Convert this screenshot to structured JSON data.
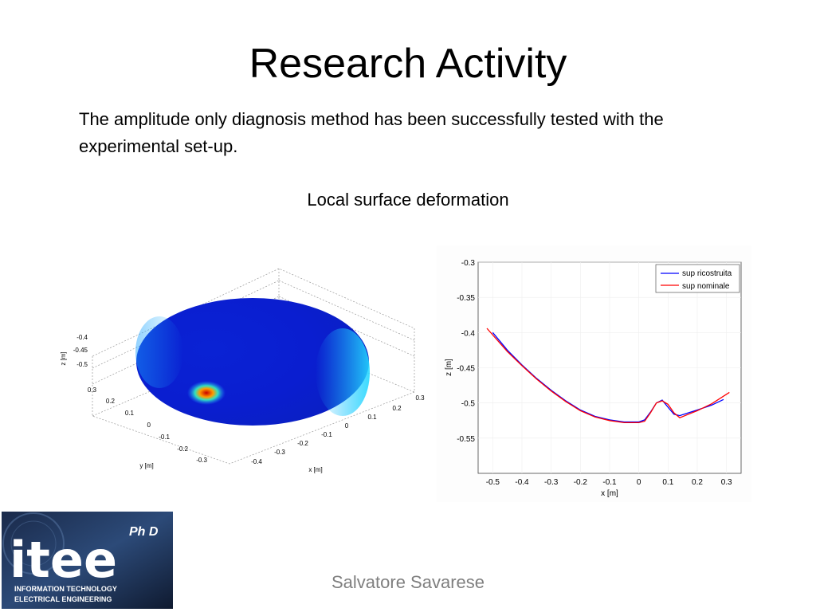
{
  "slide": {
    "title": "Research Activity",
    "body": "The amplitude only diagnosis method has been successfully tested with the experimental set-up.",
    "caption": "Local surface deformation",
    "footer": "Salvatore Savarese"
  },
  "logo": {
    "main": "itee",
    "badge": "Ph D",
    "line1": "INFORMATION TECHNOLOGY",
    "line2": "ELECTRICAL ENGINEERING"
  },
  "chart_data": [
    {
      "type": "surface",
      "title": "",
      "xlabel": "x [m]",
      "ylabel": "y [m]",
      "zlabel": "z [m]",
      "x_ticks": [
        "0.3",
        "0.2",
        "0.1",
        "0",
        "-0.1",
        "-0.2",
        "-0.3",
        "-0.4"
      ],
      "y_ticks": [
        "0.3",
        "0.2",
        "0.1",
        "0",
        "-0.1",
        "-0.2",
        "-0.3"
      ],
      "z_ticks": [
        "-0.4",
        "-0.45",
        "-0.5"
      ],
      "xlim": [
        -0.4,
        0.3
      ],
      "ylim": [
        -0.3,
        0.3
      ],
      "zlim": [
        -0.5,
        -0.4
      ],
      "colors": {
        "low": "#0a1ec8",
        "mid": "#1bb8ff",
        "high": "#c80000"
      }
    },
    {
      "type": "line",
      "title": "",
      "xlabel": "x [m]",
      "ylabel": "z [m]",
      "xlim": [
        -0.55,
        0.35
      ],
      "ylim": [
        -0.6,
        -0.3
      ],
      "x_ticks": [
        -0.5,
        -0.4,
        -0.3,
        -0.2,
        -0.1,
        0,
        0.1,
        0.2,
        0.3
      ],
      "y_ticks": [
        -0.3,
        -0.35,
        -0.4,
        -0.45,
        -0.5,
        -0.55
      ],
      "legend_position": "top-right",
      "series": [
        {
          "name": "sup ricostruita",
          "color": "#0000ff",
          "x": [
            -0.5,
            -0.45,
            -0.4,
            -0.35,
            -0.3,
            -0.25,
            -0.2,
            -0.15,
            -0.1,
            -0.05,
            0.0,
            0.02,
            0.04,
            0.06,
            0.08,
            0.1,
            0.12,
            0.14,
            0.17,
            0.2,
            0.25,
            0.29
          ],
          "y": [
            -0.4,
            -0.425,
            -0.446,
            -0.465,
            -0.482,
            -0.497,
            -0.51,
            -0.519,
            -0.524,
            -0.527,
            -0.527,
            -0.524,
            -0.513,
            -0.5,
            -0.496,
            -0.506,
            -0.516,
            -0.518,
            -0.514,
            -0.51,
            -0.503,
            -0.495
          ]
        },
        {
          "name": "sup nominale",
          "color": "#ff0000",
          "x": [
            -0.52,
            -0.45,
            -0.4,
            -0.35,
            -0.3,
            -0.25,
            -0.2,
            -0.15,
            -0.1,
            -0.05,
            0.0,
            0.02,
            0.04,
            0.06,
            0.08,
            0.1,
            0.12,
            0.14,
            0.17,
            0.2,
            0.25,
            0.31
          ],
          "y": [
            -0.394,
            -0.427,
            -0.447,
            -0.466,
            -0.483,
            -0.498,
            -0.511,
            -0.52,
            -0.525,
            -0.528,
            -0.528,
            -0.526,
            -0.514,
            -0.5,
            -0.497,
            -0.502,
            -0.514,
            -0.521,
            -0.516,
            -0.511,
            -0.501,
            -0.485
          ]
        }
      ]
    }
  ]
}
